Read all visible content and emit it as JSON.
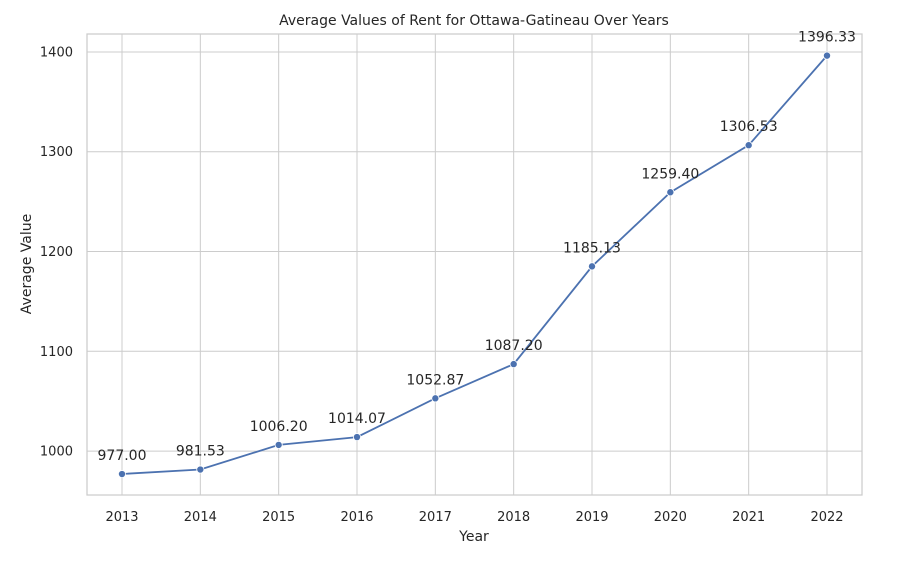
{
  "chart_data": {
    "type": "line",
    "title": "Average Values of Rent for Ottawa-Gatineau Over Years",
    "xlabel": "Year",
    "ylabel": "Average Value",
    "x": [
      "2013",
      "2014",
      "2015",
      "2016",
      "2017",
      "2018",
      "2019",
      "2020",
      "2021",
      "2022"
    ],
    "values": [
      977.0,
      981.53,
      1006.2,
      1014.07,
      1052.87,
      1087.2,
      1185.13,
      1259.4,
      1306.53,
      1396.33
    ],
    "data_labels": [
      "977.00",
      "981.53",
      "1006.20",
      "1014.07",
      "1052.87",
      "1087.20",
      "1185.13",
      "1259.40",
      "1306.53",
      "1396.33"
    ],
    "yticks": [
      1000,
      1100,
      1200,
      1300,
      1400
    ],
    "ylim": [
      956,
      1418
    ],
    "grid": true,
    "line_color": "#4c72b0"
  }
}
